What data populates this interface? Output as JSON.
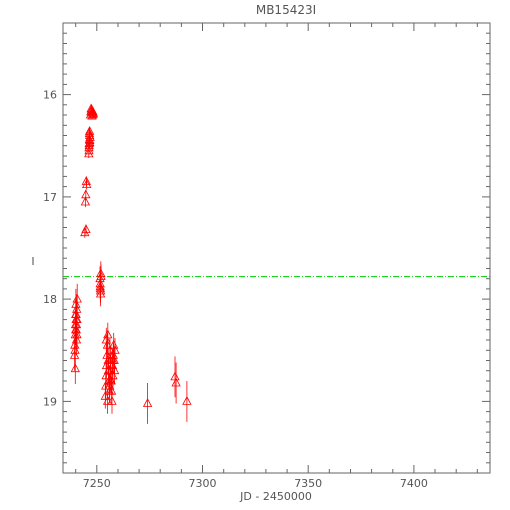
{
  "chart_data": {
    "type": "scatter",
    "title": "MB15423I",
    "xlabel": "JD - 2450000",
    "ylabel": "I",
    "xlim": [
      7234,
      7436
    ],
    "ylim": [
      19.7,
      15.3
    ],
    "y_inverted": true,
    "xticks": [
      7250,
      7300,
      7350,
      7400
    ],
    "yticks": [
      16,
      17,
      18,
      19
    ],
    "grid": false,
    "marker": "open-triangle",
    "colors": {
      "points": "#ff0000",
      "reference_line": "#00cc00",
      "axes": "#666666"
    },
    "reference_line": {
      "y": 17.78,
      "style": "dash-dot"
    },
    "series": [
      {
        "x": [
          7239.5,
          7239.6,
          7239.8,
          7239.9,
          7240.0,
          7240.1,
          7240.2,
          7240.3,
          7240.4,
          7240.5,
          7240.6,
          7240.7,
          7239.7,
          7240.0,
          7240.2,
          7240.4,
          7240.6,
          7239.8,
          7244.3,
          7244.6,
          7244.8,
          7245.0,
          7245.2,
          7244.9,
          7246.2,
          7246.3,
          7246.4,
          7246.5,
          7246.6,
          7246.7,
          7246.8,
          7246.3,
          7246.5,
          7246.7,
          7246.4,
          7246.6,
          7247.0,
          7247.2,
          7247.4,
          7247.6,
          7247.8,
          7248.0,
          7248.2,
          7248.4,
          7247.3,
          7247.7,
          7251.5,
          7251.6,
          7251.7,
          7251.8,
          7251.9,
          7252.0,
          7251.6,
          7251.8,
          7254.0,
          7254.2,
          7254.4,
          7254.6,
          7254.8,
          7255.0,
          7255.2,
          7255.4,
          7255.6,
          7255.8,
          7256.0,
          7256.2,
          7256.4,
          7256.6,
          7256.8,
          7257.0,
          7257.2,
          7257.4,
          7257.6,
          7257.8,
          7258.0,
          7258.2,
          7258.4,
          7258.6,
          7254.5,
          7255.5,
          7256.5,
          7257.5,
          7255.1,
          7256.1,
          7274.0,
          7287.0,
          7287.5,
          7292.6
        ],
        "y": [
          18.55,
          18.45,
          18.35,
          18.25,
          18.15,
          18.05,
          18.2,
          18.3,
          18.4,
          18.1,
          18.2,
          18.0,
          18.5,
          18.3,
          18.15,
          18.25,
          18.35,
          18.68,
          17.35,
          17.05,
          16.98,
          16.85,
          16.88,
          17.32,
          16.58,
          16.52,
          16.48,
          16.44,
          16.4,
          16.47,
          16.42,
          16.55,
          16.38,
          16.45,
          16.5,
          16.36,
          16.2,
          16.17,
          16.16,
          16.15,
          16.18,
          16.2,
          16.17,
          16.19,
          16.14,
          16.21,
          17.8,
          17.85,
          17.9,
          17.95,
          17.75,
          17.78,
          17.88,
          17.92,
          18.95,
          18.85,
          18.75,
          18.65,
          18.55,
          18.45,
          18.35,
          18.6,
          18.7,
          18.8,
          18.9,
          18.5,
          18.6,
          18.7,
          18.8,
          18.9,
          19.0,
          18.65,
          18.75,
          18.55,
          18.45,
          18.6,
          18.7,
          18.5,
          18.4,
          18.7,
          18.8,
          18.6,
          19.0,
          18.85,
          19.02,
          18.76,
          18.82,
          19.0
        ],
        "yerr": [
          0.15,
          0.15,
          0.15,
          0.15,
          0.15,
          0.15,
          0.15,
          0.15,
          0.15,
          0.15,
          0.15,
          0.15,
          0.15,
          0.15,
          0.15,
          0.15,
          0.15,
          0.15,
          0.05,
          0.05,
          0.05,
          0.05,
          0.05,
          0.05,
          0.04,
          0.04,
          0.04,
          0.04,
          0.04,
          0.04,
          0.04,
          0.04,
          0.04,
          0.04,
          0.04,
          0.04,
          0.03,
          0.03,
          0.03,
          0.03,
          0.03,
          0.03,
          0.03,
          0.03,
          0.03,
          0.03,
          0.12,
          0.12,
          0.12,
          0.12,
          0.12,
          0.12,
          0.12,
          0.12,
          0.12,
          0.12,
          0.12,
          0.12,
          0.12,
          0.12,
          0.12,
          0.12,
          0.12,
          0.12,
          0.12,
          0.12,
          0.12,
          0.12,
          0.12,
          0.12,
          0.12,
          0.12,
          0.12,
          0.12,
          0.12,
          0.12,
          0.12,
          0.12,
          0.12,
          0.12,
          0.12,
          0.12,
          0.12,
          0.12,
          0.2,
          0.2,
          0.2,
          0.2
        ]
      }
    ]
  }
}
